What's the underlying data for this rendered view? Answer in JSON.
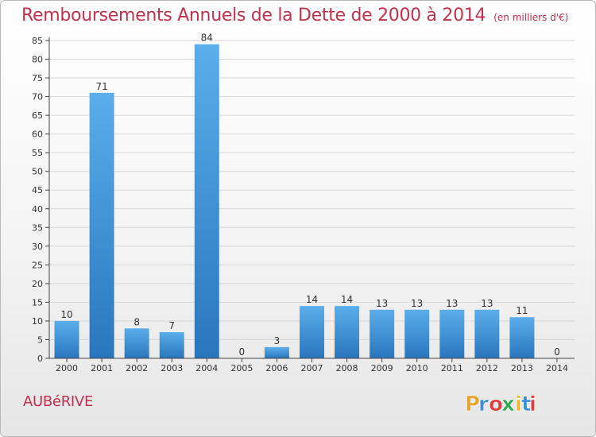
{
  "header": {
    "title": "Remboursements Annuels de la Dette de 2000 à 2014",
    "subtitle": "(en milliers d'€)"
  },
  "footer": {
    "commune": "AUBéRIVE",
    "logo_text": "Proxiti",
    "logo_colors": [
      "#e8a328",
      "#3a8fd6",
      "#e23b3b",
      "#2fa84f",
      "#f0b52c",
      "#3a8fd6",
      "#e23b3b"
    ]
  },
  "chart_data": {
    "type": "bar",
    "title": "Remboursements Annuels de la Dette de 2000 à 2014",
    "subtitle": "(en milliers d'€)",
    "xlabel": "",
    "ylabel": "",
    "categories": [
      "2000",
      "2001",
      "2002",
      "2003",
      "2004",
      "2005",
      "2006",
      "2007",
      "2008",
      "2009",
      "2010",
      "2011",
      "2012",
      "2013",
      "2014"
    ],
    "values": [
      10,
      71,
      8,
      7,
      84,
      0,
      3,
      14,
      14,
      13,
      13,
      13,
      13,
      11,
      0
    ],
    "ylim": [
      0,
      85
    ],
    "yticks": [
      0,
      5,
      10,
      15,
      20,
      25,
      30,
      35,
      40,
      45,
      50,
      55,
      60,
      65,
      70,
      75,
      80,
      85
    ],
    "grid": true,
    "bar_color": "#4a9ee0",
    "bar_color_dark": "#2a76bd",
    "label_color": "#333333",
    "axis_color": "#444444",
    "grid_color": "#d7d7d7"
  }
}
